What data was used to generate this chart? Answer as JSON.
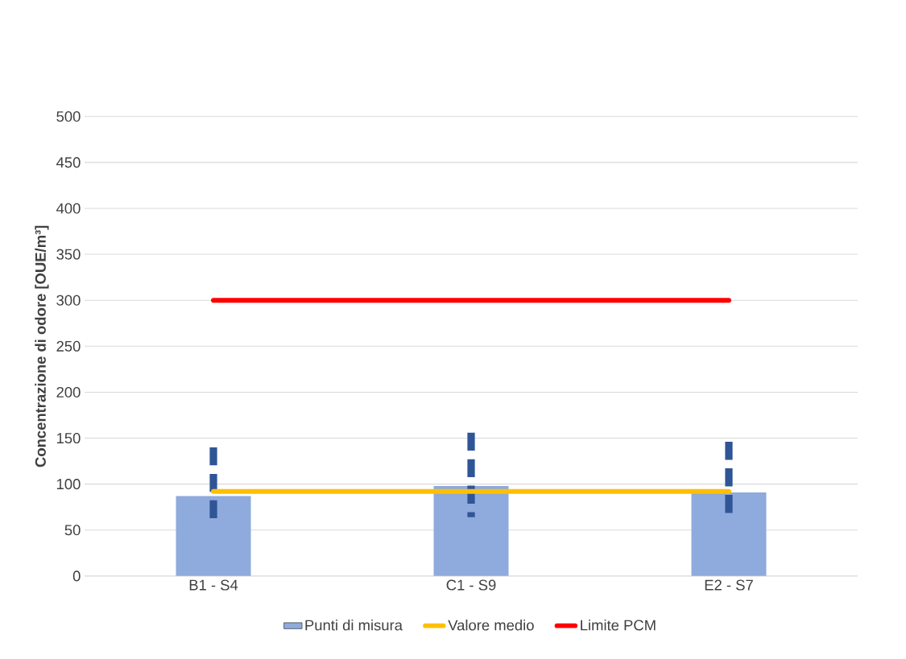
{
  "chart_data": {
    "type": "bar",
    "ylabel": "Concentrazione di odore [OUE/m³]",
    "categories": [
      "B1 - S4",
      "C1 - S9",
      "E2 - S7"
    ],
    "series": [
      {
        "name": "Punti di misura",
        "color": "#8faadc",
        "values": [
          87,
          98,
          91
        ],
        "errors": [
          [
            63,
            140
          ],
          [
            64,
            156
          ],
          [
            67,
            146
          ]
        ]
      },
      {
        "name": "Valore medio",
        "type": "line",
        "color": "#ffc000",
        "values": [
          92,
          92,
          92
        ]
      },
      {
        "name": "Limite PCM",
        "type": "line",
        "color": "#ff0000",
        "values": [
          300,
          300,
          300
        ]
      }
    ],
    "ylim": [
      0,
      500
    ],
    "yticks": [
      0,
      50,
      100,
      150,
      200,
      250,
      300,
      350,
      400,
      450,
      500
    ],
    "grid": "y",
    "legend": "bottom",
    "marker": "none"
  }
}
